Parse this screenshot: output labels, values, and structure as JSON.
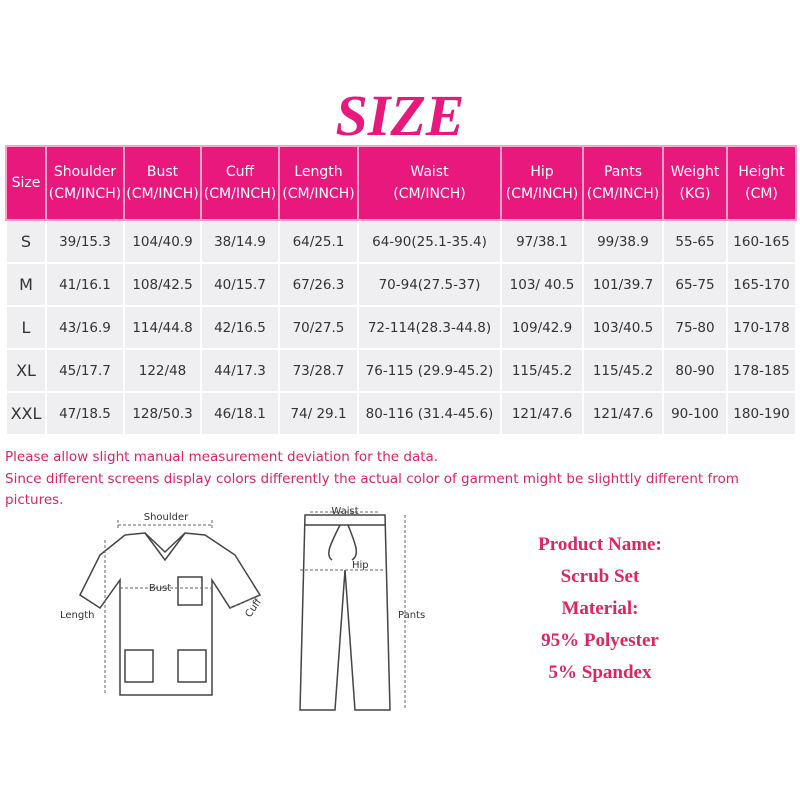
{
  "title": "SIZE",
  "table": {
    "header": [
      [
        "Size"
      ],
      [
        "Shoulder",
        "(CM/INCH)"
      ],
      [
        "Bust",
        "(CM/INCH)"
      ],
      [
        "Cuff",
        "(CM/INCH)"
      ],
      [
        "Length",
        "(CM/INCH)"
      ],
      [
        "Waist",
        "(CM/INCH)"
      ],
      [
        "Hip",
        "(CM/INCH)"
      ],
      [
        "Pants",
        "(CM/INCH)"
      ],
      [
        "Weight",
        "(KG)"
      ],
      [
        "Height",
        "(CM)"
      ]
    ],
    "rows": [
      [
        "S",
        "39/15.3",
        "104/40.9",
        "38/14.9",
        "64/25.1",
        "64-90(25.1-35.4)",
        "97/38.1",
        "99/38.9",
        "55-65",
        "160-165"
      ],
      [
        "M",
        "41/16.1",
        "108/42.5",
        "40/15.7",
        "67/26.3",
        "70-94(27.5-37)",
        "103/ 40.5",
        "101/39.7",
        "65-75",
        "165-170"
      ],
      [
        "L",
        "43/16.9",
        "114/44.8",
        "42/16.5",
        "70/27.5",
        "72-114(28.3-44.8)",
        "109/42.9",
        "103/40.5",
        "75-80",
        "170-178"
      ],
      [
        "XL",
        "45/17.7",
        "122/48",
        "44/17.3",
        "73/28.7",
        "76-115  (29.9-45.2)",
        "115/45.2",
        "115/45.2",
        "80-90",
        "178-185"
      ],
      [
        "XXL",
        "47/18.5",
        "128/50.3",
        "46/18.1",
        "74/ 29.1",
        "80-116  (31.4-45.6)",
        "121/47.6",
        "121/47.6",
        "90-100",
        "180-190"
      ]
    ]
  },
  "notes": [
    "Please allow slight manual measurement deviation for the data.",
    "Since different screens display colors differently the actual color of garment might be slighttly different from",
    "pictures."
  ],
  "diagram": {
    "shoulder": "Shoulder",
    "bust": "Bust",
    "cuff": "Cuff",
    "length": "Length",
    "waist": "Waist",
    "hip": "Hip",
    "pants": "Pants"
  },
  "product": [
    "Product Name:",
    "Scrub Set",
    "Material:",
    "95% Polyester",
    "5% Spandex"
  ]
}
